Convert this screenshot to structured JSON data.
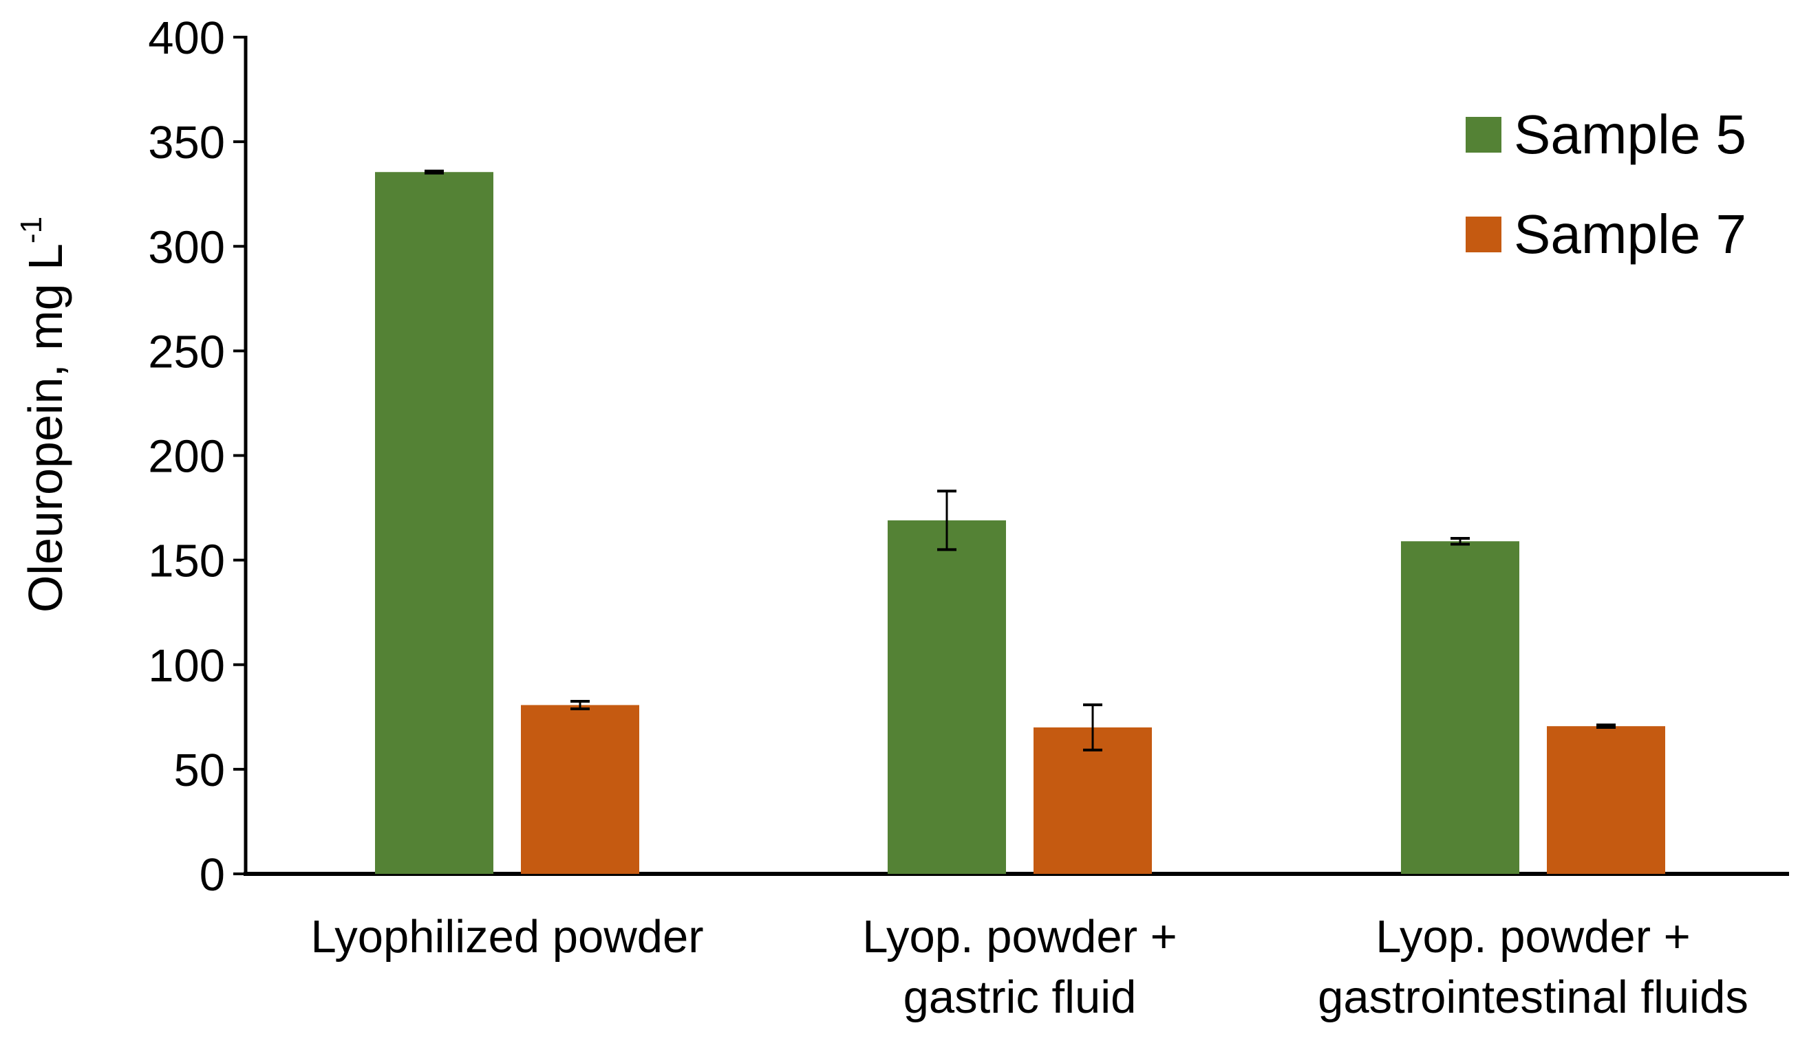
{
  "chart_data": {
    "type": "bar",
    "ylabel": "Oleuropein, mg L",
    "ylabel_superscript": "-1",
    "xlabel": "",
    "ylim": [
      0,
      400
    ],
    "yticks": [
      0,
      50,
      100,
      150,
      200,
      250,
      300,
      350,
      400
    ],
    "grid": false,
    "legend_position": "top-right",
    "categories": [
      [
        "Lyophilized powder"
      ],
      [
        "Lyop. powder +",
        "gastric fluid"
      ],
      [
        "Lyop. powder +",
        "gastrointestinal fluids"
      ]
    ],
    "series": [
      {
        "name": "Sample 5",
        "color": "#548235",
        "values": [
          335.5,
          169,
          159
        ],
        "errors": [
          0.5,
          14,
          1.4
        ]
      },
      {
        "name": "Sample 7",
        "color": "#c55a11",
        "values": [
          80.7,
          70,
          70.6
        ],
        "errors": [
          1.8,
          10.8,
          0.6
        ]
      }
    ]
  }
}
